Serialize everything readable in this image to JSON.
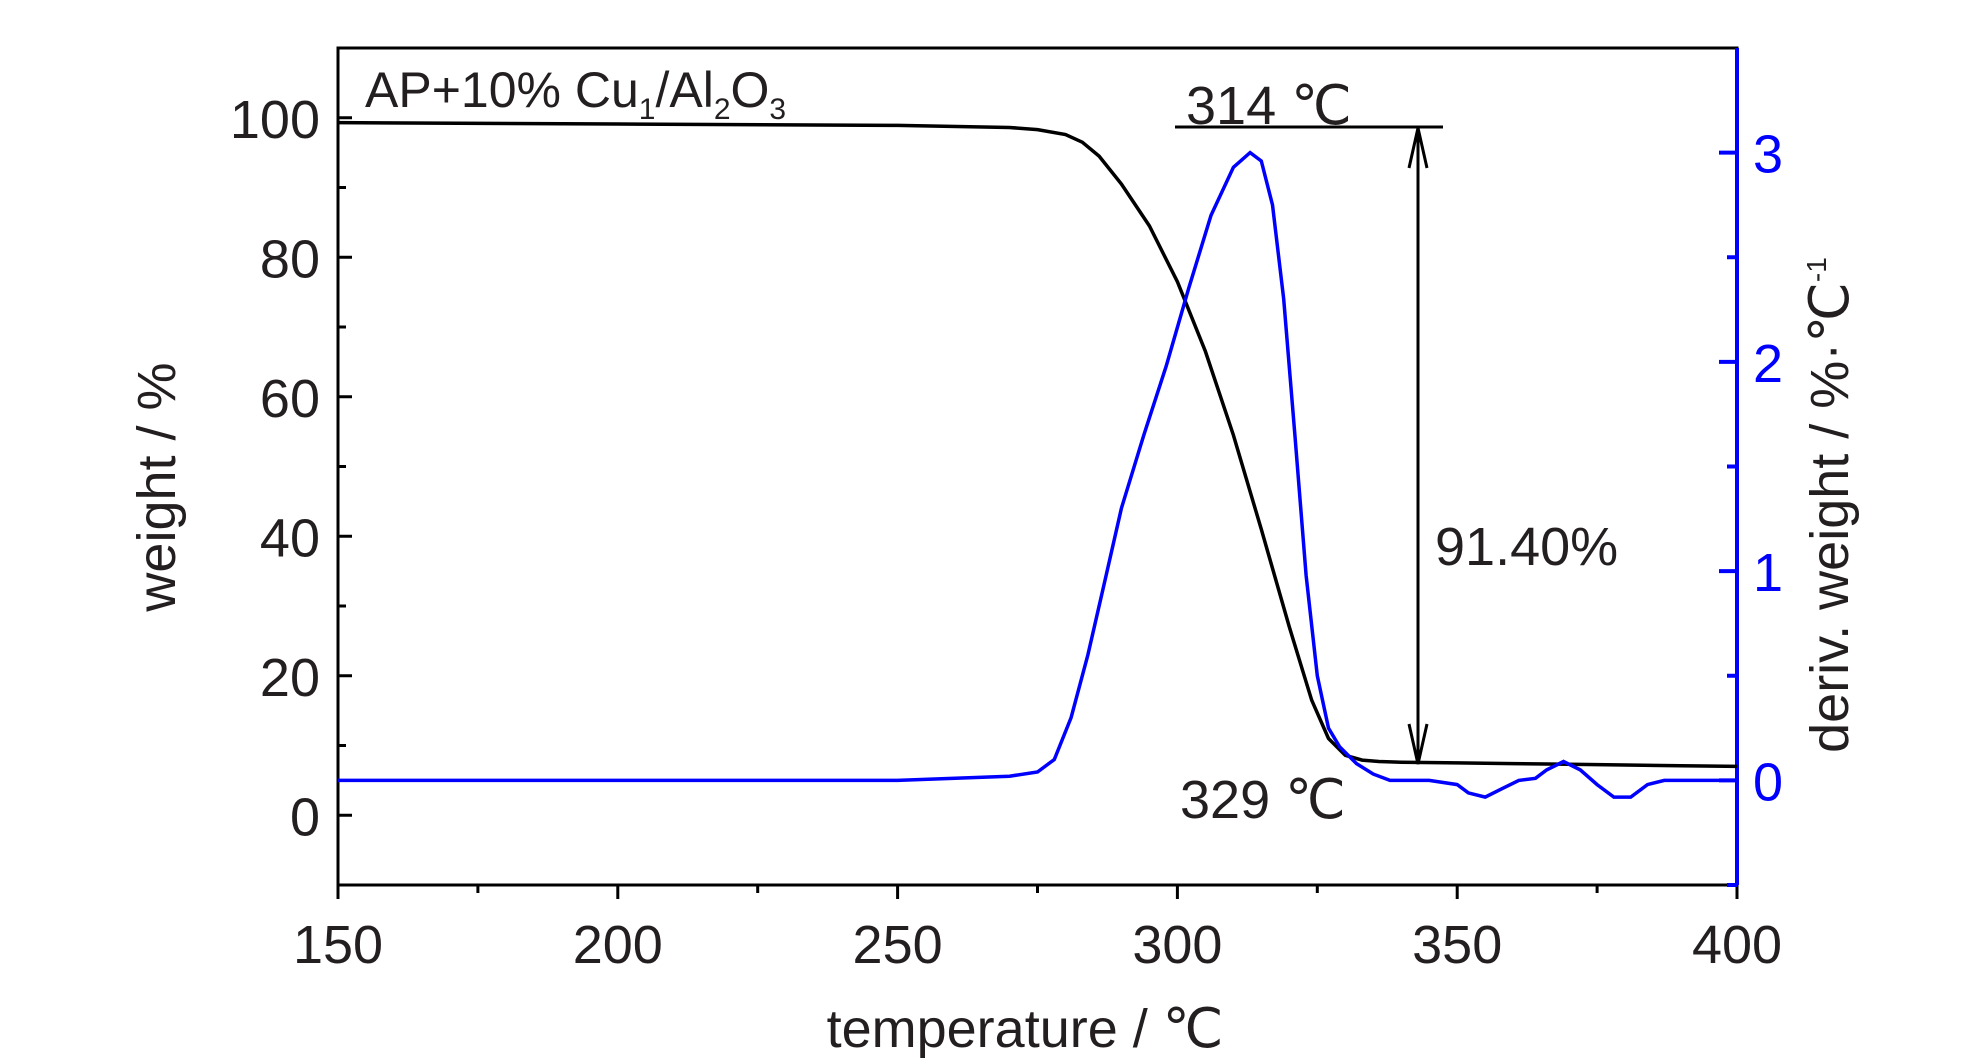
{
  "colors": {
    "weight": "#000000",
    "deriv": "#0000ff",
    "text": "#231f20"
  },
  "chart_data": {
    "type": "line",
    "sample_label": {
      "base": "AP+10% Cu",
      "sub1": "1",
      "mid": "/Al",
      "sub2": "2",
      "end": "O",
      "sub3": "3"
    },
    "xlabel": "temperature / ℃",
    "ylabel_left": "weight / %",
    "ylabel_right": "deriv. weight / %·℃",
    "ylabel_right_sup": "-1",
    "xlim": [
      150,
      400
    ],
    "ylim_left": [
      -10,
      110
    ],
    "ylim_right": [
      -0.5,
      3.5
    ],
    "x_ticks": [
      150,
      200,
      250,
      300,
      350,
      400
    ],
    "y_left_ticks": [
      0,
      20,
      40,
      60,
      80,
      100
    ],
    "y_right_ticks": [
      0,
      1,
      2,
      3
    ],
    "annotations": {
      "peak_temp": "314 ℃",
      "end_temp": "329 ℃",
      "mass_loss": "91.40%"
    },
    "series": [
      {
        "axis": "left",
        "x": [
          150,
          200,
          250,
          270,
          275,
          280,
          283,
          286,
          290,
          295,
          300,
          305,
          310,
          315,
          320,
          324,
          327,
          330,
          333,
          336,
          340,
          350,
          360,
          370,
          380,
          390,
          400
        ],
        "y": [
          99.3,
          99.1,
          98.9,
          98.6,
          98.3,
          97.6,
          96.5,
          94.5,
          90.5,
          84.5,
          76.5,
          66.5,
          54.5,
          41.0,
          27.0,
          16.5,
          11.0,
          8.6,
          7.9,
          7.7,
          7.6,
          7.5,
          7.4,
          7.3,
          7.2,
          7.1,
          7.0
        ]
      },
      {
        "axis": "right",
        "x": [
          150,
          200,
          250,
          270,
          275,
          278,
          281,
          284,
          287,
          290,
          294,
          298,
          302,
          306,
          310,
          313,
          315,
          317,
          319,
          321,
          323,
          325,
          327,
          329,
          332,
          335,
          338,
          341,
          345,
          350,
          352,
          355,
          358,
          361,
          364,
          366,
          369,
          372,
          375,
          378,
          381,
          384,
          387,
          390,
          400
        ],
        "y": [
          0.0,
          0.0,
          0.0,
          0.02,
          0.04,
          0.1,
          0.3,
          0.6,
          0.95,
          1.3,
          1.65,
          1.98,
          2.35,
          2.7,
          2.93,
          3.0,
          2.96,
          2.75,
          2.3,
          1.65,
          0.98,
          0.5,
          0.25,
          0.16,
          0.08,
          0.03,
          0.0,
          0.0,
          0.0,
          -0.02,
          -0.06,
          -0.08,
          -0.04,
          0.0,
          0.01,
          0.05,
          0.09,
          0.05,
          -0.02,
          -0.08,
          -0.08,
          -0.02,
          0.0,
          0.0,
          0.0
        ]
      }
    ]
  }
}
